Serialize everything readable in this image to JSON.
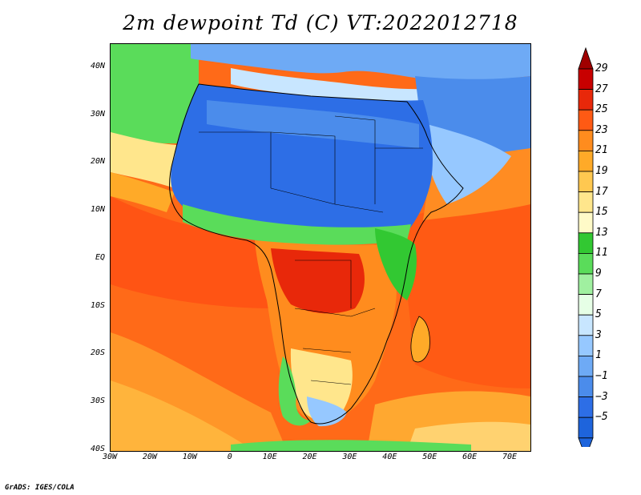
{
  "title": "2m dewpoint Td (C) VT:2022012718",
  "credit": "GrADS: IGES/COLA",
  "map": {
    "lat_range": [
      -40,
      45
    ],
    "lon_range": [
      -30,
      75
    ],
    "lat_ticks": [
      {
        "value": 40,
        "label": "40N"
      },
      {
        "value": 30,
        "label": "30N"
      },
      {
        "value": 20,
        "label": "20N"
      },
      {
        "value": 10,
        "label": "10N"
      },
      {
        "value": 0,
        "label": "EQ"
      },
      {
        "value": -10,
        "label": "10S"
      },
      {
        "value": -20,
        "label": "20S"
      },
      {
        "value": -30,
        "label": "30S"
      },
      {
        "value": -40,
        "label": "40S"
      }
    ],
    "lon_ticks": [
      {
        "value": -30,
        "label": "30W"
      },
      {
        "value": -20,
        "label": "20W"
      },
      {
        "value": -10,
        "label": "10W"
      },
      {
        "value": 0,
        "label": "0"
      },
      {
        "value": 10,
        "label": "10E"
      },
      {
        "value": 20,
        "label": "20E"
      },
      {
        "value": 30,
        "label": "30E"
      },
      {
        "value": 40,
        "label": "40E"
      },
      {
        "value": 50,
        "label": "50E"
      },
      {
        "value": 60,
        "label": "60E"
      },
      {
        "value": 70,
        "label": "70E"
      }
    ]
  },
  "legend": {
    "levels": [
      {
        "label": "29",
        "color": "#a00000"
      },
      {
        "label": "27",
        "color": "#c80000"
      },
      {
        "label": "25",
        "color": "#e8280a"
      },
      {
        "label": "23",
        "color": "#ff5a14"
      },
      {
        "label": "21",
        "color": "#ff8c1e"
      },
      {
        "label": "19",
        "color": "#ffaa28"
      },
      {
        "label": "17",
        "color": "#ffc850"
      },
      {
        "label": "15",
        "color": "#ffe68c"
      },
      {
        "label": "13",
        "color": "#fffac8"
      },
      {
        "label": "11",
        "color": "#32c832"
      },
      {
        "label": "9",
        "color": "#5adc5a"
      },
      {
        "label": "7",
        "color": "#a0f0a0"
      },
      {
        "label": "5",
        "color": "#e6ffe6"
      },
      {
        "label": "3",
        "color": "#c8e6ff"
      },
      {
        "label": "1",
        "color": "#96c8ff"
      },
      {
        "label": "−1",
        "color": "#6eaaf5"
      },
      {
        "label": "−3",
        "color": "#4b8ceb"
      },
      {
        "label": "−5",
        "color": "#2d6ee6"
      }
    ],
    "bottom_color": "#1e64dc",
    "top_color": "#a00000"
  }
}
